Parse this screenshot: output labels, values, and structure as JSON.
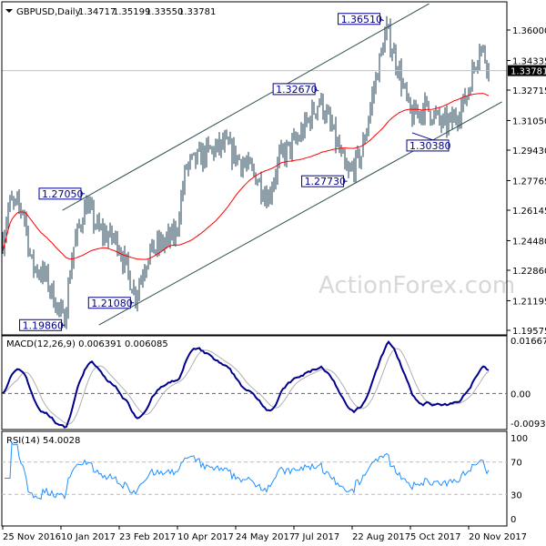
{
  "chart_data": {
    "type": "ohlc",
    "title": "GBPUSD,Daily",
    "ohlc_last": [
      "1.34717",
      "1.35199",
      "1.33550",
      "1.33781"
    ],
    "price_axis": {
      "ticks": [
        "1.36000",
        "1.34335",
        "1.32715",
        "1.31050",
        "1.29430",
        "1.27765",
        "1.26145",
        "1.24480",
        "1.22860",
        "1.21195",
        "1.19575"
      ],
      "range": [
        1.19575,
        1.36
      ],
      "current": "1.33781"
    },
    "x_ticks": [
      "25 Nov 2016",
      "10 Jan 2017",
      "23 Feb 2017",
      "10 Apr 2017",
      "24 May 2017",
      "7 Jul 2017",
      "22 Aug 2017",
      "5 Oct 2017",
      "20 Nov 2017"
    ],
    "price_path": [
      [
        "2016-11-25",
        1.245
      ],
      [
        "2016-11-30",
        1.265
      ],
      [
        "2016-12-11",
        1.262
      ],
      [
        "2016-12-17",
        1.232
      ],
      [
        "2016-12-28",
        1.225
      ],
      [
        "2017-01-11",
        1.2
      ],
      [
        "2017-01-18",
        1.24
      ],
      [
        "2017-01-28",
        1.265
      ],
      [
        "2017-02-07",
        1.25
      ],
      [
        "2017-02-21",
        1.245
      ],
      [
        "2017-03-07",
        1.215
      ],
      [
        "2017-03-17",
        1.238
      ],
      [
        "2017-04-07",
        1.248
      ],
      [
        "2017-04-15",
        1.285
      ],
      [
        "2017-05-01",
        1.293
      ],
      [
        "2017-05-15",
        1.297
      ],
      [
        "2017-05-25",
        1.29
      ],
      [
        "2017-06-08",
        1.28
      ],
      [
        "2017-06-17",
        1.268
      ],
      [
        "2017-06-26",
        1.29
      ],
      [
        "2017-07-10",
        1.3
      ],
      [
        "2017-07-27",
        1.322
      ],
      [
        "2017-08-07",
        1.302
      ],
      [
        "2017-08-17",
        1.28
      ],
      [
        "2017-08-28",
        1.292
      ],
      [
        "2017-09-07",
        1.33
      ],
      [
        "2017-09-16",
        1.36
      ],
      [
        "2017-09-25",
        1.34
      ],
      [
        "2017-10-05",
        1.312
      ],
      [
        "2017-10-16",
        1.318
      ],
      [
        "2017-10-30",
        1.308
      ],
      [
        "2017-11-06",
        1.31
      ],
      [
        "2017-11-16",
        1.322
      ],
      [
        "2017-11-27",
        1.352
      ],
      [
        "2017-12-05",
        1.3378
      ]
    ],
    "channel": {
      "upper": [
        [
          "2017-01-10",
          1.2614
        ],
        [
          "2017-10-19",
          1.3744
        ]
      ],
      "lower": [
        [
          "2017-02-07",
          1.1987
        ],
        [
          "2017-12-14",
          1.3207
        ]
      ]
    },
    "annotations": [
      {
        "text": "1.36510",
        "date": "2017-09-14",
        "price": 1.3651
      },
      {
        "text": "1.32670",
        "date": "2017-07-26",
        "price": 1.3267
      },
      {
        "text": "1.27730",
        "date": "2017-08-17",
        "price": 1.2773
      },
      {
        "text": "1.30380",
        "date": "2017-10-06",
        "price": 1.3038
      },
      {
        "text": "1.27050",
        "date": "2017-01-27",
        "price": 1.2705
      },
      {
        "text": "1.21080",
        "date": "2017-03-06",
        "price": 1.2108
      },
      {
        "text": "1.19860",
        "date": "2017-01-12",
        "price": 1.1986
      }
    ],
    "ma_color": "#ff0000",
    "bar_color": "#1f3f55",
    "macd": {
      "label": "MACD(12,26,9) 0.006391 0.006085",
      "ticks": [
        "0.016672",
        "0.00",
        "-0.009345"
      ],
      "range": [
        -0.009345,
        0.016672
      ],
      "main_color": "#00008b",
      "signal_color": "#b0b0b0"
    },
    "rsi": {
      "label": "RSI(14) 54.0028",
      "ticks": [
        "100",
        "70",
        "30",
        "0"
      ],
      "range": [
        0,
        100
      ],
      "color": "#1e90ff"
    },
    "watermark": "ActionForex.com"
  }
}
